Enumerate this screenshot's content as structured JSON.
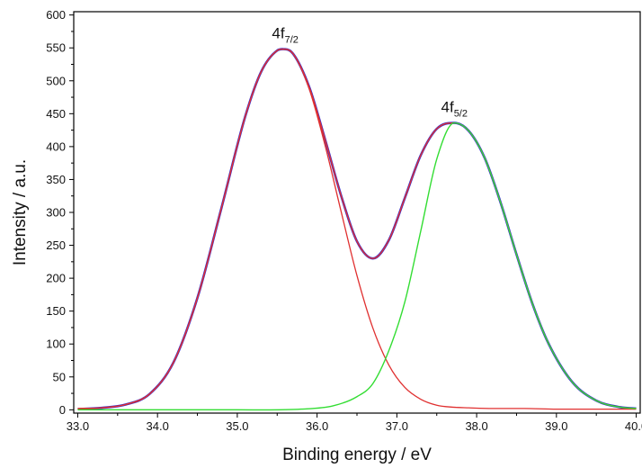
{
  "chart_data": {
    "type": "line",
    "title": "",
    "xlabel": "Binding energy / eV",
    "ylabel": "Intensity / a.u.",
    "xlim": [
      32.95,
      40.05
    ],
    "ylim": [
      -5,
      605
    ],
    "xticks": [
      33.0,
      34.0,
      35.0,
      36.0,
      37.0,
      38.0,
      39.0,
      40.0
    ],
    "xtick_labels": [
      "33.0",
      "34.0",
      "35.0",
      "36.0",
      "37.0",
      "38.0",
      "39.0",
      "40.0"
    ],
    "yticks": [
      0,
      50,
      100,
      150,
      200,
      250,
      300,
      350,
      400,
      450,
      500,
      550,
      600
    ],
    "ytick_labels": [
      "0",
      "50",
      "100",
      "150",
      "200",
      "250",
      "300",
      "350",
      "400",
      "450",
      "500",
      "550",
      "600"
    ],
    "grid": false,
    "annotations": [
      {
        "main": "4f",
        "sub": "7/2",
        "x": 35.6,
        "y": 548
      },
      {
        "main": "4f",
        "sub": "5/2",
        "x": 37.72,
        "y": 436
      }
    ],
    "series": [
      {
        "color": "#2b2bd6",
        "x": [
          33.0,
          33.3,
          33.6,
          33.9,
          34.2,
          34.5,
          34.8,
          35.1,
          35.3,
          35.5,
          35.6,
          35.7,
          35.9,
          36.1,
          36.3,
          36.5,
          36.7,
          36.9,
          37.1,
          37.3,
          37.5,
          37.72,
          37.9,
          38.1,
          38.3,
          38.5,
          38.7,
          38.9,
          39.2,
          39.5,
          39.8,
          40.0
        ],
        "values": [
          1,
          3,
          8,
          24,
          72,
          170,
          306,
          446,
          514,
          546,
          548,
          541,
          491,
          411,
          326,
          256,
          230,
          258,
          322,
          387,
          427,
          436,
          424,
          383,
          315,
          236,
          161,
          101,
          42,
          14,
          4,
          2
        ]
      },
      {
        "color": "#e03030",
        "x": [
          33.0,
          33.3,
          33.6,
          33.9,
          34.2,
          34.5,
          34.8,
          35.1,
          35.3,
          35.5,
          35.6,
          35.7,
          35.9,
          36.1,
          36.3,
          36.5,
          36.7,
          36.9,
          37.1,
          37.3,
          37.5,
          37.72,
          37.9,
          38.1,
          38.3,
          38.5,
          38.7,
          38.9,
          39.2,
          39.5,
          39.8,
          40.0
        ],
        "values": [
          2,
          3,
          8,
          24,
          72,
          170,
          306,
          446,
          514,
          546,
          548,
          541,
          491,
          411,
          326,
          256,
          230,
          258,
          322,
          387,
          427,
          436,
          424,
          383,
          315,
          236,
          161,
          101,
          42,
          14,
          4,
          2
        ]
      },
      {
        "color": "#e03030",
        "x": [
          33.0,
          33.3,
          33.6,
          33.9,
          34.2,
          34.5,
          34.8,
          35.1,
          35.3,
          35.5,
          35.6,
          35.7,
          35.9,
          36.1,
          36.3,
          36.5,
          36.7,
          36.9,
          37.1,
          37.3,
          37.5,
          37.7,
          37.9,
          38.2,
          38.6,
          39.0,
          39.5,
          40.0
        ],
        "values": [
          1,
          3,
          8,
          24,
          72,
          170,
          306,
          446,
          514,
          546,
          548,
          541,
          488,
          402,
          302,
          204,
          124,
          68,
          34,
          16,
          7,
          4,
          3,
          2,
          2,
          1,
          1,
          1
        ]
      },
      {
        "color": "#33dd33",
        "x": [
          33.0,
          34.0,
          35.0,
          35.8,
          36.2,
          36.5,
          36.7,
          36.9,
          37.1,
          37.3,
          37.5,
          37.72,
          37.9,
          38.1,
          38.3,
          38.5,
          38.7,
          38.9,
          39.2,
          39.5,
          39.8,
          40.0
        ],
        "values": [
          0,
          0,
          0,
          1,
          6,
          20,
          40,
          90,
          164,
          272,
          381,
          436,
          424,
          383,
          315,
          236,
          161,
          101,
          42,
          14,
          4,
          2
        ]
      }
    ]
  }
}
